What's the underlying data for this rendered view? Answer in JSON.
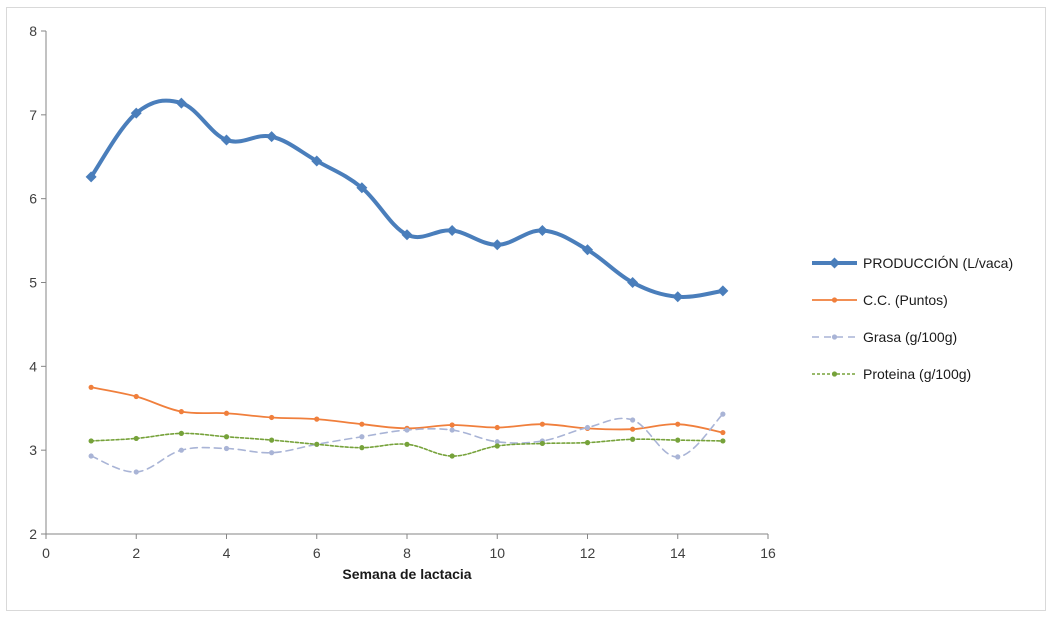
{
  "chart_data": {
    "type": "line",
    "title": "",
    "xlabel": "Semana de lactacia",
    "ylabel": "",
    "xlim": [
      0,
      16
    ],
    "ylim": [
      2,
      8
    ],
    "xticks": [
      0,
      2,
      4,
      6,
      8,
      10,
      12,
      14,
      16
    ],
    "yticks": [
      2,
      3,
      4,
      5,
      6,
      7,
      8
    ],
    "grid": false,
    "legend_position": "right",
    "x": [
      1,
      2,
      3,
      4,
      5,
      6,
      7,
      8,
      9,
      10,
      11,
      12,
      13,
      14,
      15
    ],
    "series": [
      {
        "name": "PRODUCCIÓN (L/vaca)",
        "color": "#4a7ebb",
        "style": "solid-thick",
        "marker": "diamond",
        "values": [
          6.26,
          7.02,
          7.14,
          6.7,
          6.74,
          6.45,
          6.13,
          5.57,
          5.62,
          5.45,
          5.62,
          5.39,
          5.0,
          4.83,
          4.9
        ]
      },
      {
        "name": "C.C. (Puntos)",
        "color": "#f07f3c",
        "style": "solid",
        "marker": "dot",
        "values": [
          3.75,
          3.64,
          3.46,
          3.44,
          3.39,
          3.37,
          3.31,
          3.26,
          3.3,
          3.27,
          3.31,
          3.26,
          3.25,
          3.31,
          3.21
        ]
      },
      {
        "name": "Grasa (g/100g)",
        "color": "#a9b4d6",
        "style": "dashed",
        "marker": "dot",
        "values": [
          2.93,
          2.74,
          3.0,
          3.02,
          2.97,
          3.07,
          3.16,
          3.24,
          3.24,
          3.1,
          3.11,
          3.27,
          3.36,
          2.92,
          3.43
        ]
      },
      {
        "name": "Proteina (g/100g)",
        "color": "#76a23a",
        "style": "dotted",
        "marker": "dot",
        "values": [
          3.11,
          3.14,
          3.2,
          3.16,
          3.12,
          3.07,
          3.03,
          3.07,
          2.93,
          3.05,
          3.08,
          3.09,
          3.13,
          3.12,
          3.11
        ]
      }
    ]
  }
}
